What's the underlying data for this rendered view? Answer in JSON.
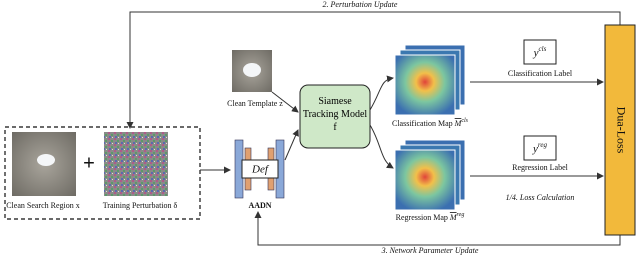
{
  "arrows": {
    "perturbation_update": "2. Perturbation Update",
    "network_update": "3. Network Parameter Update",
    "loss_calculation": "1/4. Loss Calculation"
  },
  "inputs": {
    "clean_search_region": "Clean Search Region x",
    "operator": "+",
    "training_perturbation": "Training Perturbation δ"
  },
  "aadn": {
    "name": "AADN",
    "inner": "Def"
  },
  "template": {
    "label": "Clean Template z"
  },
  "model": {
    "label": "Siamese Tracking Model f"
  },
  "maps": {
    "classification": {
      "label": "Classification Map",
      "symbol": "M",
      "sup": "cls"
    },
    "regression": {
      "label": "Regression Map",
      "symbol": "M",
      "sup": "reg"
    }
  },
  "labels": {
    "classification": {
      "text": "Classification Label",
      "symbol": "y",
      "sup": "cls"
    },
    "regression": {
      "text": "Regression Label",
      "symbol": "y",
      "sup": "reg"
    }
  },
  "loss": {
    "label": "Dua-Loss"
  }
}
